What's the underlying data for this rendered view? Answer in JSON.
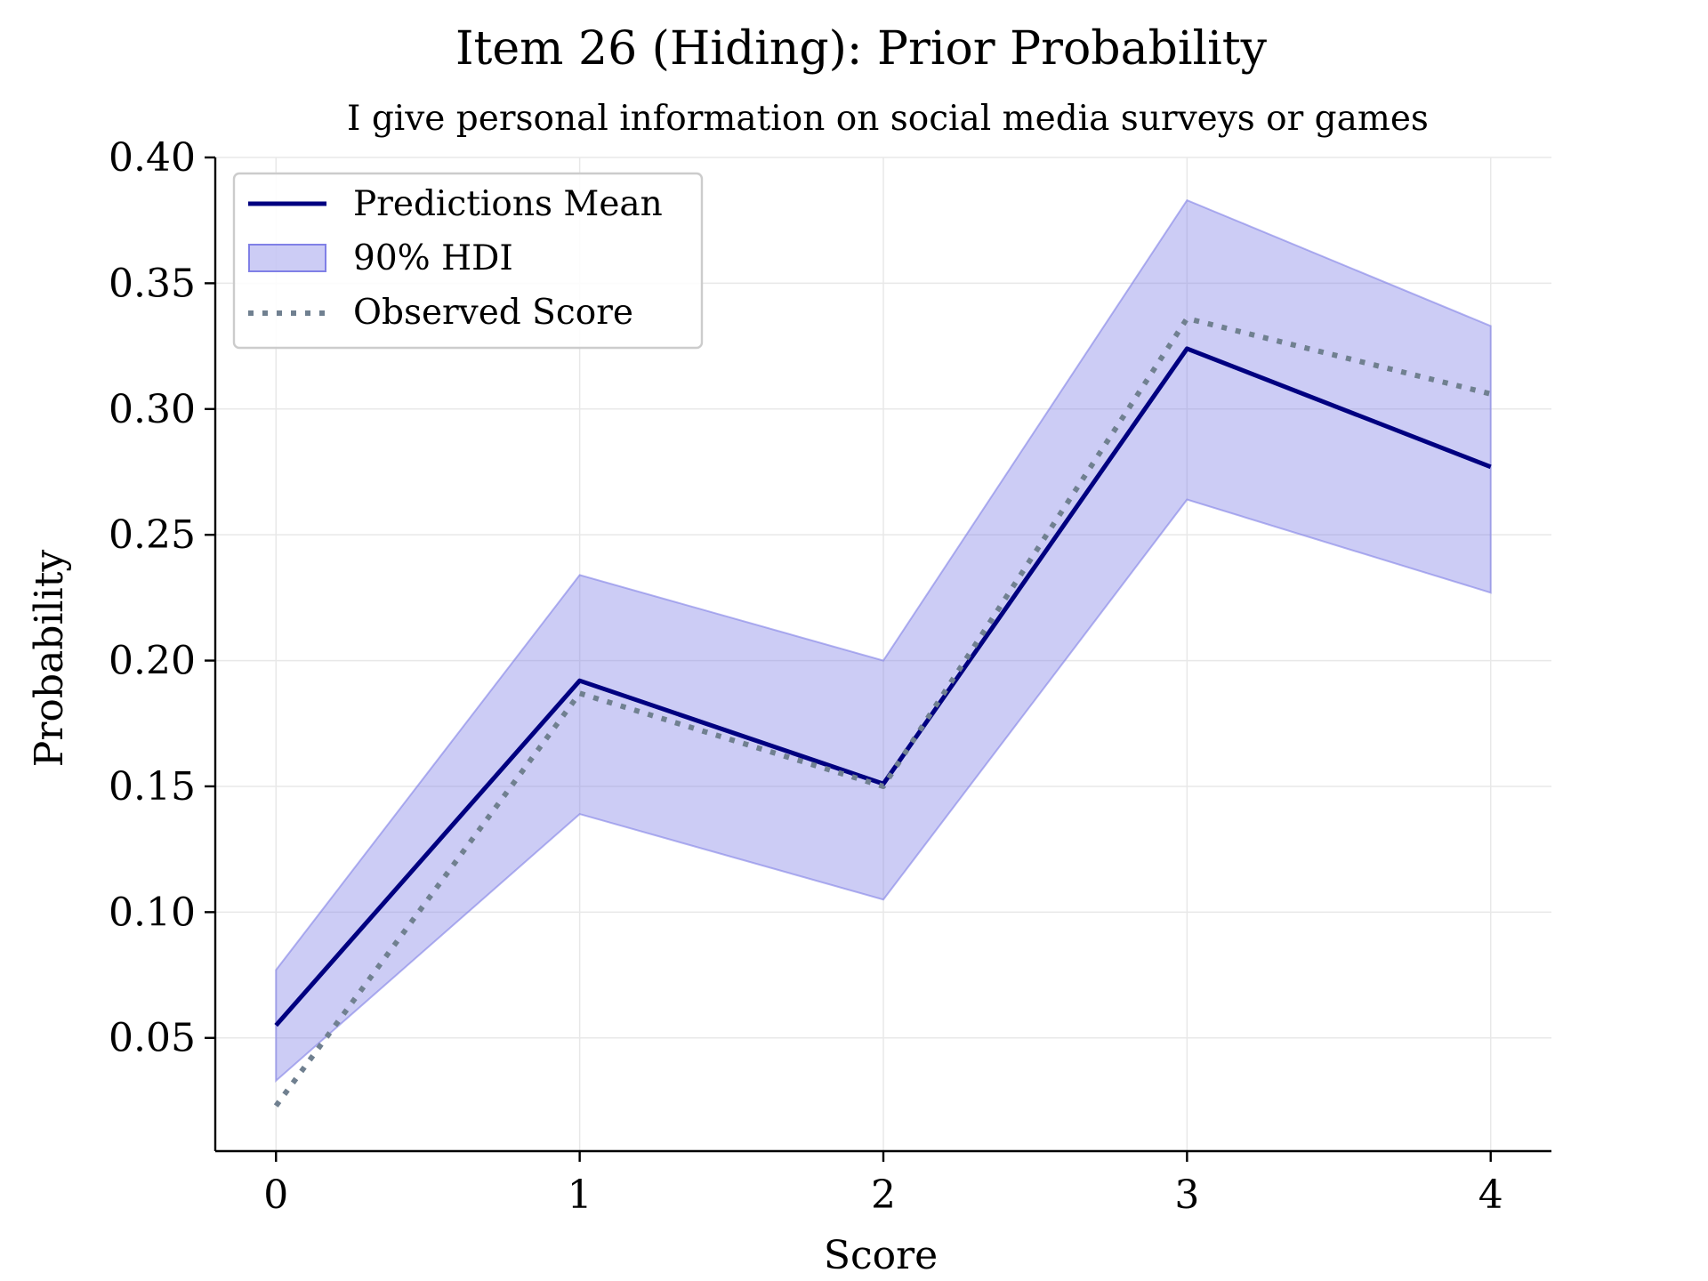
{
  "chart_data": {
    "type": "line",
    "title": "Item 26 (Hiding): Prior Probability",
    "subtitle": "I give personal information on social media surveys or games",
    "xlabel": "Score",
    "ylabel": "Probability",
    "x": [
      0,
      1,
      2,
      3,
      4
    ],
    "xlim": [
      -0.2,
      4.2
    ],
    "ylim": [
      0.005,
      0.4
    ],
    "x_ticks": [
      0,
      1,
      2,
      3,
      4
    ],
    "x_tick_labels": [
      "0",
      "1",
      "2",
      "3",
      "4"
    ],
    "y_ticks": [
      0.05,
      0.1,
      0.15,
      0.2,
      0.25,
      0.3,
      0.35,
      0.4
    ],
    "y_tick_labels": [
      "0.05",
      "0.10",
      "0.15",
      "0.20",
      "0.25",
      "0.30",
      "0.35",
      "0.40"
    ],
    "grid": true,
    "legend_position": "top-left",
    "series": [
      {
        "name": "Predictions Mean",
        "style": "solid",
        "color": "#000080",
        "values": [
          0.055,
          0.192,
          0.151,
          0.324,
          0.277
        ]
      },
      {
        "name": "90% HDI",
        "style": "band",
        "color": "#8080e6",
        "lower": [
          0.033,
          0.139,
          0.105,
          0.264,
          0.227
        ],
        "upper": [
          0.077,
          0.234,
          0.2,
          0.383,
          0.333
        ]
      },
      {
        "name": "Observed Score",
        "style": "dotted",
        "color": "#708090",
        "values": [
          0.023,
          0.187,
          0.15,
          0.336,
          0.306
        ]
      }
    ]
  }
}
